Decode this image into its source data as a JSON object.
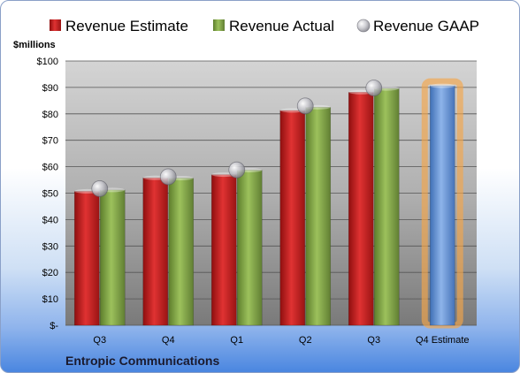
{
  "chart_data": {
    "type": "bar",
    "ylabel": "$millions",
    "ylim": [
      0,
      100
    ],
    "yticks": [
      "$-",
      "$10",
      "$20",
      "$30",
      "$40",
      "$50",
      "$60",
      "$70",
      "$80",
      "$90",
      "$100"
    ],
    "categories": [
      "Q3",
      "Q4",
      "Q1",
      "Q2",
      "Q3",
      "Q4 Estimate"
    ],
    "series": [
      {
        "name": "Revenue Estimate",
        "color": "#cc1f1f",
        "values": [
          50.7,
          55.8,
          57.0,
          81.3,
          88.2,
          null
        ]
      },
      {
        "name": "Revenue Actual",
        "color": "#82a84a",
        "values": [
          51.2,
          55.7,
          58.7,
          82.5,
          89.6,
          null
        ]
      },
      {
        "name": "Revenue GAAP",
        "color": "#b8b8c0",
        "marker": "sphere",
        "values": [
          51.7,
          56.2,
          58.8,
          83.0,
          89.8,
          null
        ]
      },
      {
        "name": "Q4 Estimate",
        "color": "#6c9ee0",
        "highlight": "#f5a64a",
        "values": [
          null,
          null,
          null,
          null,
          null,
          90.6
        ]
      }
    ],
    "grid": true,
    "legend_position": "top"
  },
  "company": "Entropic Communications"
}
